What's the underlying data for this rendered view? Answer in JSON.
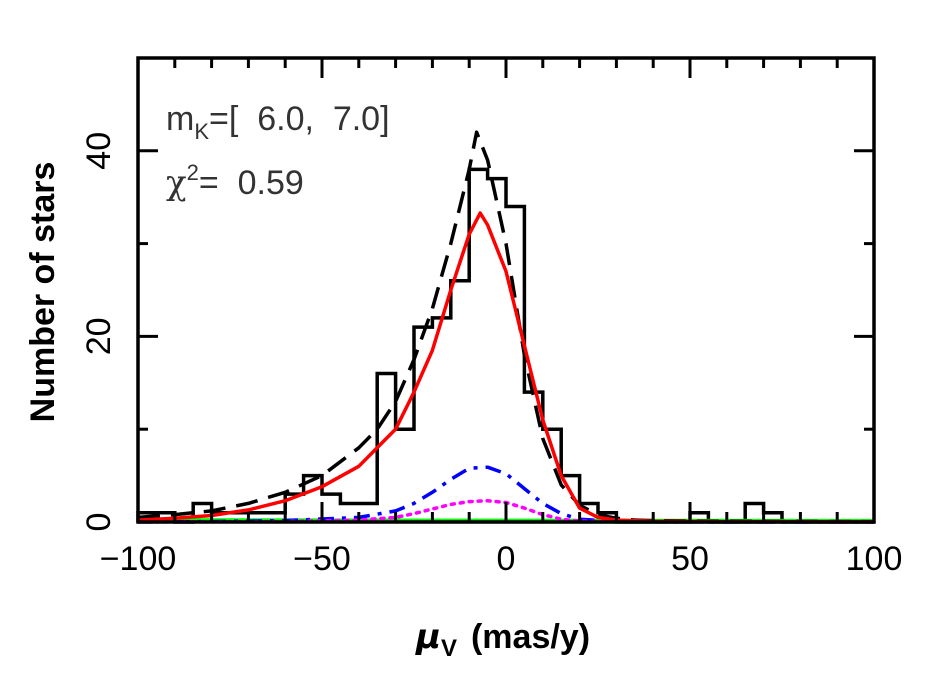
{
  "chart_data": {
    "type": "line",
    "title": "",
    "xlabel_symbol": "μ",
    "xlabel_sub": "V",
    "xlabel_unit": "(mas/y)",
    "ylabel": "Number of stars",
    "xlim": [
      -100,
      100
    ],
    "ylim": [
      0,
      50
    ],
    "xticks": [
      -100,
      -50,
      0,
      50,
      100
    ],
    "yticks": [
      0,
      20,
      40
    ],
    "grid": false,
    "annotations": {
      "mag_prefix": "m",
      "mag_sub": "K",
      "mag_range": "=[  6.0,  7.0]",
      "chi_symbol": "χ",
      "chi_sup": "2",
      "chi_value": "=  0.59"
    },
    "histogram": {
      "name": "",
      "color": "#000000",
      "bin_edges": [
        -100,
        -95,
        -90,
        -85,
        -80,
        -75,
        -70,
        -65,
        -60,
        -55,
        -50,
        -45,
        -40,
        -35,
        -30,
        -25,
        -20,
        -15,
        -10,
        -5,
        0,
        5,
        10,
        15,
        20,
        25,
        30,
        35,
        40,
        45,
        50,
        55,
        60,
        65,
        70,
        75,
        80,
        85,
        90,
        95,
        100
      ],
      "counts": [
        1,
        1,
        0,
        2,
        1,
        1,
        1,
        1,
        3,
        5,
        3,
        2,
        2,
        16,
        10,
        21,
        22,
        26,
        38,
        37,
        34,
        14,
        10,
        5,
        2,
        1,
        0,
        0,
        0,
        0,
        1,
        0,
        0,
        2,
        1,
        0,
        0,
        0,
        0,
        0
      ]
    },
    "series": [
      {
        "name": "",
        "color": "#000000",
        "style": "dashed",
        "x": [
          -100,
          -90,
          -80,
          -70,
          -60,
          -50,
          -40,
          -35,
          -30,
          -25,
          -20,
          -15,
          -10,
          -8,
          -5,
          0,
          5,
          10,
          15,
          20,
          25,
          30,
          35,
          40,
          50,
          60,
          70,
          80,
          90,
          100
        ],
        "y": [
          0.5,
          0.8,
          1.2,
          2,
          3.2,
          5,
          8,
          10,
          13,
          17.5,
          23,
          30,
          38,
          42,
          39,
          30,
          18,
          9,
          4,
          1.8,
          0.8,
          0.4,
          0.2,
          0.15,
          0.1,
          0.08,
          0.06,
          0.05,
          0.04,
          0.03
        ]
      },
      {
        "name": "",
        "color": "#ff0000",
        "style": "solid",
        "x": [
          -100,
          -90,
          -80,
          -70,
          -60,
          -50,
          -40,
          -30,
          -25,
          -20,
          -15,
          -10,
          -7,
          -5,
          0,
          5,
          10,
          15,
          20,
          25,
          30,
          40,
          50,
          60,
          70,
          80,
          90,
          100
        ],
        "y": [
          0.2,
          0.4,
          0.7,
          1.3,
          2.3,
          3.8,
          6,
          10,
          14,
          18.5,
          25,
          31,
          33.3,
          32,
          27,
          19,
          11,
          5,
          1.5,
          0.5,
          0.2,
          0.08,
          0.05,
          0.03,
          0.02,
          0.02,
          0.01,
          0.01
        ]
      },
      {
        "name": "",
        "color": "#0000ff",
        "style": "dash-dot",
        "x": [
          -100,
          -80,
          -60,
          -40,
          -30,
          -25,
          -20,
          -15,
          -10,
          -5,
          0,
          5,
          10,
          15,
          20,
          30,
          40,
          60,
          80,
          100
        ],
        "y": [
          0,
          0.05,
          0.15,
          0.5,
          1.2,
          2,
          3.2,
          4.6,
          5.8,
          5.9,
          5.2,
          3.6,
          2,
          0.9,
          0.3,
          0.05,
          0.02,
          0,
          0,
          0
        ]
      },
      {
        "name": "",
        "color": "#ff00ff",
        "style": "dotted",
        "x": [
          -100,
          -60,
          -40,
          -30,
          -25,
          -20,
          -15,
          -10,
          -5,
          0,
          5,
          10,
          15,
          20,
          30,
          50,
          100
        ],
        "y": [
          0,
          0.05,
          0.2,
          0.5,
          0.9,
          1.4,
          1.9,
          2.2,
          2.3,
          2.1,
          1.5,
          0.8,
          0.3,
          0.1,
          0.02,
          0,
          0
        ]
      },
      {
        "name": "",
        "color": "#00ff00",
        "style": "solid",
        "x": [
          -100,
          -50,
          0,
          50,
          100
        ],
        "y": [
          0.15,
          0.12,
          0.1,
          0.08,
          0.06
        ]
      }
    ]
  }
}
